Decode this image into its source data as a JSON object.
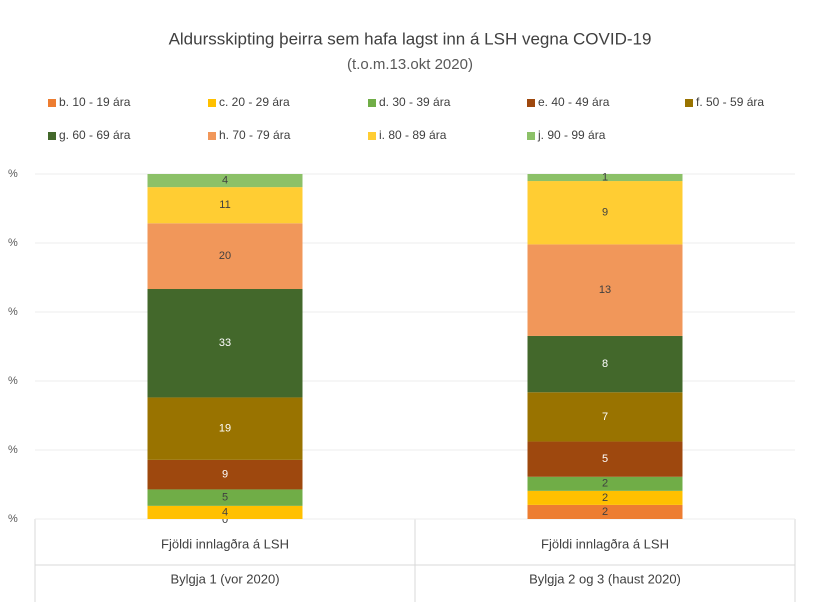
{
  "chart_data": {
    "type": "stacked_percent_bar",
    "title": "Aldursskipting þeirra sem hafa lagst inn á LSH vegna COVID-19",
    "subtitle": "(t.o.m.13.okt 2020)",
    "categories": [
      "Bylgja 1 (vor 2020)",
      "Bylgja 2 og 3 (haust 2020)"
    ],
    "subcategories": [
      "Fjöldi innlagðra á LSH",
      "Fjöldi innlagðra á LSH"
    ],
    "ylim": [
      0,
      100
    ],
    "yticks": [
      {
        "value": 0,
        "label": "%"
      },
      {
        "value": 20,
        "label": "%"
      },
      {
        "value": 40,
        "label": "%"
      },
      {
        "value": 60,
        "label": "%"
      },
      {
        "value": 80,
        "label": "%"
      },
      {
        "value": 100,
        "label": "%"
      }
    ],
    "grid": true,
    "legend": "top",
    "series": [
      {
        "name": "b. 10 - 19 ára",
        "color": "#ed7d31",
        "label_color": "#404040",
        "values": [
          0,
          2
        ]
      },
      {
        "name": "c. 20 - 29 ára",
        "color": "#ffc000",
        "label_color": "#404040",
        "values": [
          4,
          2
        ]
      },
      {
        "name": "d. 30 - 39 ára",
        "color": "#70ad47",
        "label_color": "#404040",
        "values": [
          5,
          2
        ]
      },
      {
        "name": "e. 40 - 49 ára",
        "color": "#9e480e",
        "label_color": "#ffffff",
        "values": [
          9,
          5
        ]
      },
      {
        "name": "f. 50 - 59 ára",
        "color": "#997300",
        "label_color": "#ffffff",
        "values": [
          19,
          7
        ]
      },
      {
        "name": "g. 60 - 69 ára",
        "color": "#43682b",
        "label_color": "#ffffff",
        "values": [
          33,
          8
        ]
      },
      {
        "name": "h. 70 - 79 ára",
        "color": "#f1975a",
        "label_color": "#404040",
        "values": [
          20,
          13
        ]
      },
      {
        "name": "i. 80 - 89 ára",
        "color": "#ffcd33",
        "label_color": "#404040",
        "values": [
          11,
          9
        ]
      },
      {
        "name": "j. 90 - 99 ára",
        "color": "#8cc168",
        "label_color": "#404040",
        "values": [
          4,
          1
        ]
      }
    ]
  }
}
